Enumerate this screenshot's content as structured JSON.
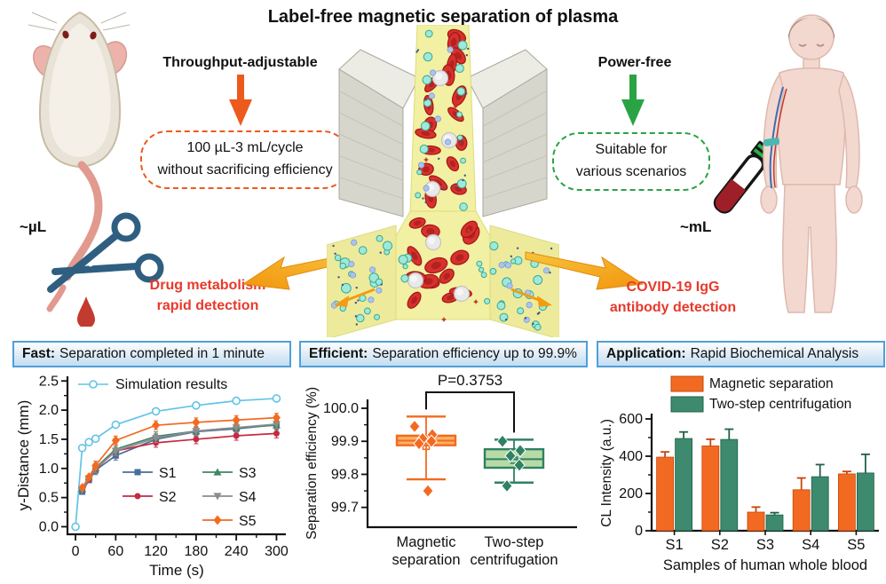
{
  "title": "Label-free magnetic separation of plasma",
  "top": {
    "throughput_label": "Throughput-adjustable",
    "throughput_box": {
      "line1": "100 µL-3 mL/cycle",
      "line2": "without sacrificing efficiency"
    },
    "power_label": "Power-free",
    "power_box": {
      "line1": "Suitable for",
      "line2": "various scenarios"
    },
    "mouse_scale": "~µL",
    "human_scale": "~mL",
    "left_application": {
      "line1": "Drug metabolism",
      "line2": "rapid detection"
    },
    "right_application": {
      "line1": "COVID-19 IgG",
      "line2": "antibody detection"
    }
  },
  "panel_headers": [
    {
      "prefix": "Fast:",
      "rest": "Separation completed in 1 minute"
    },
    {
      "prefix": "Efficient:",
      "rest": "Separation efficiency up to 99.9%"
    },
    {
      "prefix": "Application:",
      "rest": "Rapid Biochemical Analysis"
    }
  ],
  "colors": {
    "accent_orange": "#ec5a1e",
    "accent_green": "#2aa344",
    "red_text": "#e8392b",
    "header_border": "#4fa0d8",
    "series_orange": "#f26a21",
    "series_green": "#3d8a6e",
    "simulation_blue": "#62c3e6"
  },
  "chart_data": [
    {
      "id": "time-course",
      "type": "line",
      "xlabel": "Time (s)",
      "ylabel": "y-Distance (mm)",
      "xticks": [
        0,
        60,
        120,
        180,
        240,
        300
      ],
      "yticks": [
        0.0,
        0.5,
        1.0,
        1.5,
        2.0,
        2.5
      ],
      "xlim": [
        -12,
        314
      ],
      "ylim": [
        -0.13,
        2.58
      ],
      "x": [
        0,
        10,
        20,
        30,
        60,
        120,
        180,
        240,
        300
      ],
      "series": [
        {
          "name": "Simulation results",
          "color": "#62c3e6",
          "marker": "circle-open",
          "values": [
            0,
            1.35,
            1.45,
            1.51,
            1.75,
            1.98,
            2.08,
            2.16,
            2.2
          ]
        },
        {
          "name": "S1",
          "color": "#4a6d99",
          "marker": "square",
          "values": [
            null,
            0.6,
            0.8,
            0.97,
            1.22,
            1.5,
            1.63,
            1.68,
            1.75
          ]
        },
        {
          "name": "S2",
          "color": "#c62a41",
          "marker": "circle",
          "values": [
            null,
            0.64,
            0.81,
            0.99,
            1.3,
            1.44,
            1.5,
            1.56,
            1.6
          ]
        },
        {
          "name": "S3",
          "color": "#3f8566",
          "marker": "triangle-up",
          "values": [
            null,
            0.65,
            0.85,
            1.01,
            1.33,
            1.55,
            1.64,
            1.7,
            1.74
          ]
        },
        {
          "name": "S4",
          "color": "#8c8c8c",
          "marker": "triangle-down",
          "values": [
            null,
            0.63,
            0.83,
            1.0,
            1.3,
            1.52,
            1.64,
            1.7,
            1.76
          ]
        },
        {
          "name": "S5",
          "color": "#f26a21",
          "marker": "diamond",
          "values": [
            null,
            0.67,
            0.85,
            1.05,
            1.48,
            1.74,
            1.79,
            1.83,
            1.87
          ]
        }
      ]
    },
    {
      "id": "efficiency-box",
      "type": "box",
      "ylabel": "Separation efficiency (%)",
      "yticks": [
        99.7,
        99.8,
        99.9,
        100.0
      ],
      "annotation": "P=0.3753",
      "boxes": [
        {
          "label": "Magnetic separation",
          "label_lines": [
            "Magnetic",
            "separation"
          ],
          "color": "#f26a21",
          "fill": "#fbb161",
          "whisker_low": 99.785,
          "q1": 99.888,
          "median": 99.902,
          "q3": 99.917,
          "mean": 99.885,
          "whisker_high": 99.975,
          "points": [
            99.945,
            99.92,
            99.908,
            99.9,
            99.893,
            99.75
          ]
        },
        {
          "label": "Two-step centrifugation",
          "label_lines": [
            "Two-step",
            "centrifugation"
          ],
          "color": "#2f8163",
          "fill": "#b7dba6",
          "whisker_low": 99.775,
          "q1": 99.82,
          "median": 99.846,
          "q3": 99.876,
          "mean": 99.843,
          "whisker_high": 99.905,
          "points": [
            99.9,
            99.872,
            99.856,
            99.828,
            99.765
          ]
        }
      ]
    },
    {
      "id": "cl-intensity-bar",
      "type": "bar",
      "xlabel": "Samples of human whole blood",
      "ylabel": "CL Intensity (a.u.)",
      "yticks": [
        0,
        200,
        400,
        600
      ],
      "ylim": [
        0,
        600
      ],
      "categories": [
        "S1",
        "S2",
        "S3",
        "S4",
        "S5"
      ],
      "series": [
        {
          "name": "Magnetic separation",
          "color": "#f26a21",
          "values": [
            395,
            455,
            100,
            220,
            305
          ],
          "errors": [
            28,
            36,
            27,
            63,
            13
          ]
        },
        {
          "name": "Two-step centrifugation",
          "color": "#3d8a6e",
          "values": [
            495,
            490,
            85,
            290,
            310
          ],
          "errors": [
            35,
            55,
            12,
            65,
            100
          ]
        }
      ]
    }
  ]
}
